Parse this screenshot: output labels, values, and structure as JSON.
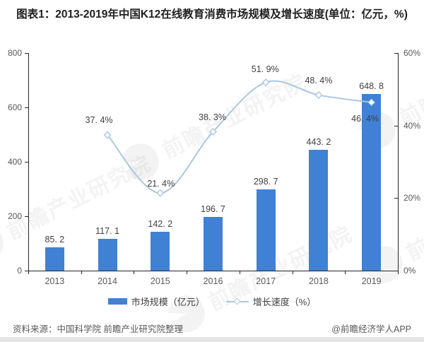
{
  "title": "图表1：2013-2019年中国K12在线教育消费市场规模及增长速度(单位：亿元，%)",
  "colors": {
    "bar": "#4081D4",
    "line": "#A9C7E5",
    "axis": "#262626",
    "label_text": "#404040",
    "tick_text": "#595959"
  },
  "chart_data": {
    "type": "combo-bar-line",
    "categories": [
      "2013",
      "2014",
      "2015",
      "2016",
      "2017",
      "2018",
      "2019"
    ],
    "series": [
      {
        "name": "市场规模（亿元）",
        "type": "bar",
        "axis": "left",
        "values": [
          85.2,
          117.1,
          142.2,
          196.7,
          298.7,
          443.2,
          648.8
        ],
        "labels": [
          "85. 2",
          "117. 1",
          "142. 2",
          "196. 7",
          "298. 7",
          "443. 2",
          "648. 8"
        ]
      },
      {
        "name": "增长速度（%）",
        "type": "line",
        "axis": "right",
        "values": [
          null,
          37.4,
          21.4,
          38.3,
          51.9,
          48.4,
          46.4
        ],
        "labels": [
          null,
          "37. 4%",
          "21. 4%",
          "38. 3%",
          "51. 9%",
          "48. 4%",
          "46. 4%"
        ]
      }
    ],
    "left_axis": {
      "range": [
        0,
        800
      ],
      "ticks": [
        0,
        200,
        400,
        600,
        800
      ]
    },
    "right_axis": {
      "range": [
        0,
        60
      ],
      "ticks": [
        0,
        20,
        40,
        60
      ],
      "tick_labels": [
        "0%",
        "20%",
        "40%",
        "60%"
      ]
    },
    "grid": false,
    "legend_position": "bottom"
  },
  "legend": [
    {
      "label": "市场规模（亿元）"
    },
    {
      "label": "增长速度（%）"
    }
  ],
  "watermark": {
    "text": "前瞻产业研究院"
  },
  "footer": {
    "source": "资料来源：中国科学院 前瞻产业研究院整理",
    "credit": "@前瞻经济学人APP"
  }
}
